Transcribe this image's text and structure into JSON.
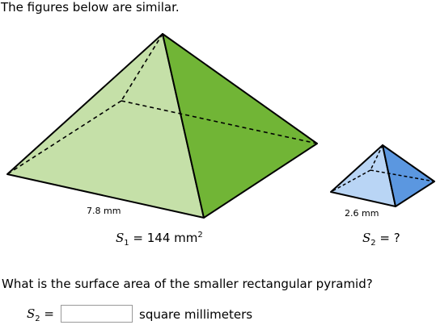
{
  "header": {
    "title": "The figures below are similar."
  },
  "figures": {
    "large": {
      "edge_label": "7.8 mm",
      "area": {
        "symbol": "S",
        "subscript": "1",
        "text": " = 144 mm",
        "superscript": "2"
      }
    },
    "small": {
      "edge_label": "2.6 mm",
      "area": {
        "symbol": "S",
        "subscript": "2",
        "text": " = ?"
      }
    }
  },
  "question": {
    "text": "What is the surface area of the smaller rectangular pyramid?",
    "answer": {
      "symbol": "S",
      "subscript": "2",
      "text": " =",
      "unit": "square millimeters"
    }
  }
}
